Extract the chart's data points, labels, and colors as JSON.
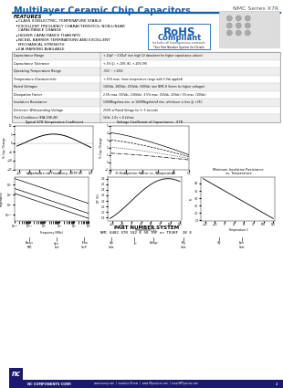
{
  "title": "Multilayer Ceramic Chip Capacitors",
  "series_label": "NMC Series X7R",
  "header_blue": "#1a5fa8",
  "bg_white": "#ffffff",
  "features_title": "FEATURES",
  "feature_lines": [
    "CLASS II DIELECTRIC, TEMPERATURE STABLE",
    "EXCELLENT FREQUENCY CHARACTERISTICS, NON-LINEAR",
    "  CAPACITANCE CHANGE",
    "HIGHER CAPACITANCE THAN NPO",
    "NICKEL BARRIER TERMINATIONS AND EXCELLENT",
    "  MECHANICAL STRENGTH",
    "EIA MARKING AVAILABLE"
  ],
  "specs": [
    [
      "Capacitance Range",
      "+-10pF ~ 0.82uF (see high CV datasheet for higher capacitance values)"
    ],
    [
      "Capacitance Tolerance",
      "+-5% (J), +-10% (K), +-20% (M)"
    ],
    [
      "Operating Temperature Range",
      "-55C ~ +125C"
    ],
    [
      "Temperature Characteristic",
      "+-15% max. (max temperature range with 5 Vdc applied)"
    ],
    [
      "Rated Voltages",
      "100Vdc, 200Vdc, 250Vdc, 500Vdc (see NMC-H Series for higher voltages)"
    ],
    [
      "Dissipation Factor",
      "2.5% max. (50Vdc, 100Vdc), 3.5% max. (16Vdc, 25Vdc); 5% max. (10Vdc)"
    ],
    [
      "Insulation Resistance",
      "1000Megohms min. or 1000Megohm/uF min. whichever is less @ +25C"
    ],
    [
      "Dielectric Withstanding Voltage",
      "250% of Rated Voltage for 1~5 seconds"
    ],
    [
      "Test Conditions (EIA-198-2E)",
      "1kHz, 1.0v +-0.2Vrms"
    ]
  ],
  "graph1_title": "Typical X7R Temperature Coefficient",
  "graph2_title": "Voltage Coefficient of Capacitance - X7R",
  "graph3_title": "Impedance vs. Frequency - X7R",
  "graph4_title": "% Dissipation Factor vs. Temperature",
  "graph5_title": "Minimum Insulation Resistance\nvs. Temperature",
  "part_number_title": "PART NUMBER SYSTEM",
  "part_number_example": "NMC 0402 X7R 102 K 50 TRP or TR3KF  2K E",
  "footer_company": "NC COMPONENTS CORP.",
  "footer_urls": "www.nccmp.com  |  www.bse-SF.com  |  www.HFpassives.com  |  www.SMTpassive.com",
  "footer_page": "4"
}
